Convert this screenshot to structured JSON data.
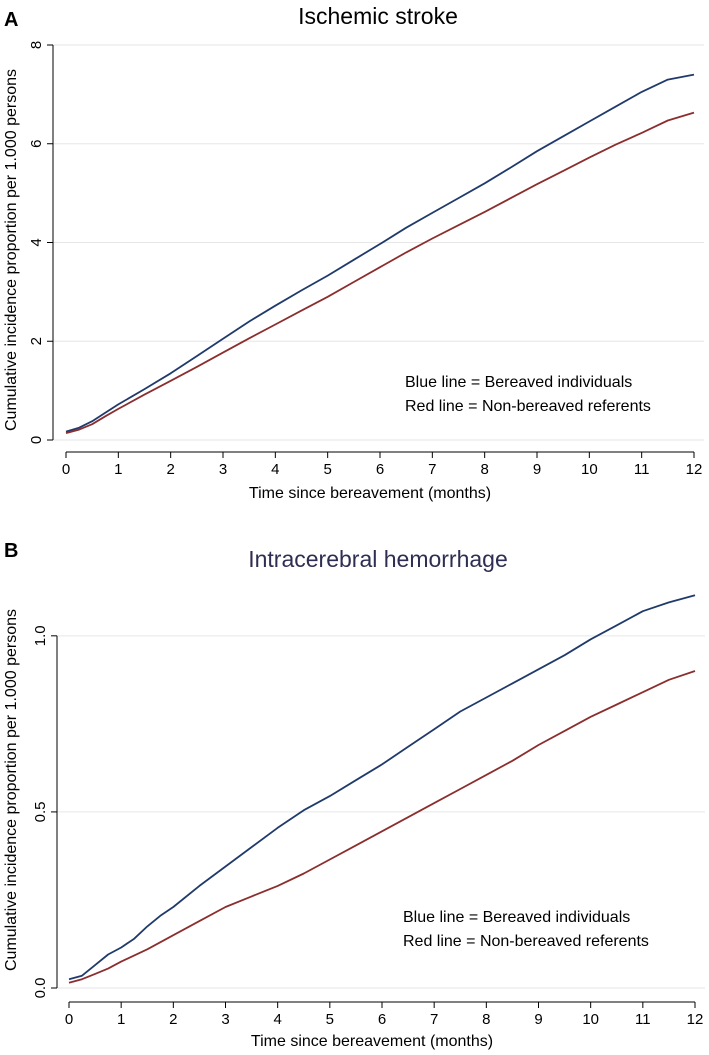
{
  "chart_data": [
    {
      "type": "line",
      "panel_label": "A",
      "title": "Ischemic stroke",
      "title_color": "#000000",
      "xlabel": "Time since bereavement (months)",
      "ylabel": "Cumulative incidence proportion per 1.000 persons",
      "xlim": [
        0,
        12
      ],
      "ylim": [
        0,
        8
      ],
      "x_ticks": [
        0,
        1,
        2,
        3,
        4,
        5,
        6,
        7,
        8,
        9,
        10,
        11,
        12
      ],
      "y_ticks": [
        0,
        2,
        4,
        6,
        8
      ],
      "y_tick_labels": [
        "0",
        "2",
        "4",
        "6",
        "8"
      ],
      "grid": true,
      "legend_lines": [
        "Blue line = Bereaved individuals",
        "Red line = Non-bereaved referents"
      ],
      "legend_position": "bottom-right",
      "series": [
        {
          "color": "#1f3a6b",
          "x": [
            0,
            0.25,
            0.5,
            0.75,
            1,
            1.5,
            2,
            2.5,
            3,
            3.5,
            4,
            4.5,
            5,
            5.5,
            6,
            6.5,
            7,
            7.5,
            8,
            8.5,
            9,
            9.5,
            10,
            10.5,
            11,
            11.5,
            12
          ],
          "y": [
            0.17,
            0.25,
            0.38,
            0.55,
            0.72,
            1.03,
            1.35,
            1.7,
            2.05,
            2.4,
            2.72,
            3.03,
            3.33,
            3.65,
            3.97,
            4.3,
            4.6,
            4.9,
            5.2,
            5.52,
            5.85,
            6.15,
            6.45,
            6.75,
            7.05,
            7.3,
            7.4
          ]
        },
        {
          "color": "#8b2e2e",
          "x": [
            0,
            0.25,
            0.5,
            0.75,
            1,
            1.5,
            2,
            2.5,
            3,
            3.5,
            4,
            4.5,
            5,
            5.5,
            6,
            6.5,
            7,
            7.5,
            8,
            8.5,
            9,
            9.5,
            10,
            10.5,
            11,
            11.5,
            12
          ],
          "y": [
            0.14,
            0.21,
            0.32,
            0.48,
            0.63,
            0.92,
            1.2,
            1.48,
            1.77,
            2.06,
            2.34,
            2.62,
            2.9,
            3.2,
            3.5,
            3.8,
            4.08,
            4.35,
            4.62,
            4.9,
            5.18,
            5.45,
            5.72,
            5.98,
            6.22,
            6.47,
            6.63
          ]
        }
      ]
    },
    {
      "type": "line",
      "panel_label": "B",
      "title": "Intracerebral hemorrhage",
      "title_color": "#2e2e52",
      "xlabel": "Time since bereavement (months)",
      "ylabel": "Cumulative incidence proportion per 1.000 persons",
      "xlim": [
        0,
        12
      ],
      "ylim": [
        0,
        1.15
      ],
      "x_ticks": [
        0,
        1,
        2,
        3,
        4,
        5,
        6,
        7,
        8,
        9,
        10,
        11,
        12
      ],
      "y_ticks": [
        0,
        0.5,
        1
      ],
      "y_tick_labels": [
        "0.0",
        "0.5",
        "1.0"
      ],
      "grid": true,
      "legend_lines": [
        "Blue line = Bereaved individuals",
        "Red line = Non-bereaved referents"
      ],
      "legend_position": "bottom-right",
      "series": [
        {
          "color": "#1f3a6b",
          "x": [
            0,
            0.25,
            0.5,
            0.75,
            1,
            1.25,
            1.5,
            1.75,
            2,
            2.5,
            3,
            3.5,
            4,
            4.5,
            5,
            5.5,
            6,
            6.5,
            7,
            7.5,
            8,
            8.5,
            9,
            9.5,
            10,
            10.5,
            11,
            11.5,
            12
          ],
          "y": [
            0.025,
            0.035,
            0.065,
            0.095,
            0.115,
            0.14,
            0.175,
            0.205,
            0.23,
            0.29,
            0.345,
            0.4,
            0.455,
            0.505,
            0.545,
            0.59,
            0.635,
            0.685,
            0.735,
            0.785,
            0.825,
            0.865,
            0.905,
            0.945,
            0.99,
            1.03,
            1.07,
            1.095,
            1.115
          ]
        },
        {
          "color": "#8b2e2e",
          "x": [
            0,
            0.25,
            0.5,
            0.75,
            1,
            1.5,
            2,
            2.5,
            3,
            3.5,
            4,
            4.5,
            5,
            5.5,
            6,
            6.5,
            7,
            7.5,
            8,
            8.5,
            9,
            9.5,
            10,
            10.5,
            11,
            11.5,
            12
          ],
          "y": [
            0.015,
            0.025,
            0.04,
            0.055,
            0.075,
            0.11,
            0.15,
            0.19,
            0.23,
            0.26,
            0.29,
            0.325,
            0.365,
            0.405,
            0.445,
            0.485,
            0.525,
            0.565,
            0.605,
            0.645,
            0.69,
            0.73,
            0.77,
            0.805,
            0.84,
            0.875,
            0.9
          ]
        }
      ]
    }
  ]
}
